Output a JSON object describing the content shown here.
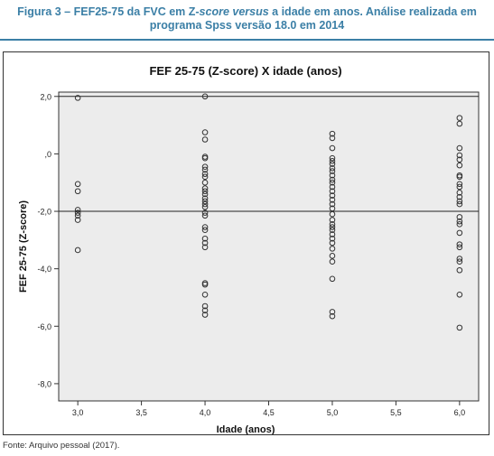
{
  "caption": {
    "prefix": "Figura 3 – FEF25-75 da FVC em Z-",
    "italic1": "score versus",
    "suffix": " a idade em anos. Análise realizada em",
    "line2": "programa Spss versão 18.0 em 2014"
  },
  "source": "Fonte: Arquivo pessoal (2017).",
  "chart_data": {
    "type": "scatter",
    "title": "FEF 25-75 (Z-score) X idade (anos)",
    "xlabel": "Idade (anos)",
    "ylabel": "FEF 25-75 (Z-score)",
    "xlim": [
      2.85,
      6.15
    ],
    "ylim": [
      -8.6,
      2.15
    ],
    "xticks": [
      3.0,
      3.5,
      4.0,
      4.5,
      5.0,
      5.5,
      6.0
    ],
    "xtick_labels": [
      "3,0",
      "3,5",
      "4,0",
      "4,5",
      "5,0",
      "5,5",
      "6,0"
    ],
    "yticks": [
      2.0,
      0.0,
      -2.0,
      -4.0,
      -6.0,
      -8.0
    ],
    "ytick_labels": [
      "2,0",
      ",0",
      "-2,0",
      "-4,0",
      "-6,0",
      "-8,0"
    ],
    "reference_lines": [
      2.0,
      -2.0
    ],
    "grid": false,
    "points": [
      {
        "x": 3.0,
        "values": [
          1.95,
          -1.05,
          -1.3,
          -1.95,
          -2.05,
          -2.15,
          -2.3,
          -3.35
        ]
      },
      {
        "x": 4.0,
        "values": [
          2.0,
          0.75,
          0.5,
          -0.1,
          -0.15,
          -0.45,
          -0.55,
          -0.7,
          -0.8,
          -1.0,
          -1.2,
          -1.3,
          -1.4,
          -1.55,
          -1.65,
          -1.75,
          -1.85,
          -2.05,
          -2.15,
          -2.55,
          -2.65,
          -2.95,
          -3.1,
          -3.25,
          -4.5,
          -4.55,
          -4.9,
          -5.3,
          -5.45,
          -5.6
        ]
      },
      {
        "x": 5.0,
        "values": [
          0.7,
          0.55,
          0.2,
          -0.15,
          -0.25,
          -0.35,
          -0.5,
          -0.6,
          -0.75,
          -0.9,
          -1.0,
          -1.15,
          -1.3,
          -1.45,
          -1.6,
          -1.75,
          -1.9,
          -2.1,
          -2.3,
          -2.45,
          -2.55,
          -2.65,
          -2.8,
          -2.95,
          -3.1,
          -3.3,
          -3.55,
          -3.75,
          -4.35,
          -5.5,
          -5.65
        ]
      },
      {
        "x": 6.0,
        "values": [
          1.25,
          1.05,
          0.2,
          -0.05,
          -0.2,
          -0.4,
          -0.75,
          -0.8,
          -1.05,
          -1.15,
          -1.35,
          -1.5,
          -1.65,
          -1.75,
          -2.2,
          -2.35,
          -2.45,
          -2.75,
          -3.15,
          -3.25,
          -3.65,
          -3.75,
          -4.05,
          -4.9,
          -6.05
        ]
      }
    ]
  }
}
